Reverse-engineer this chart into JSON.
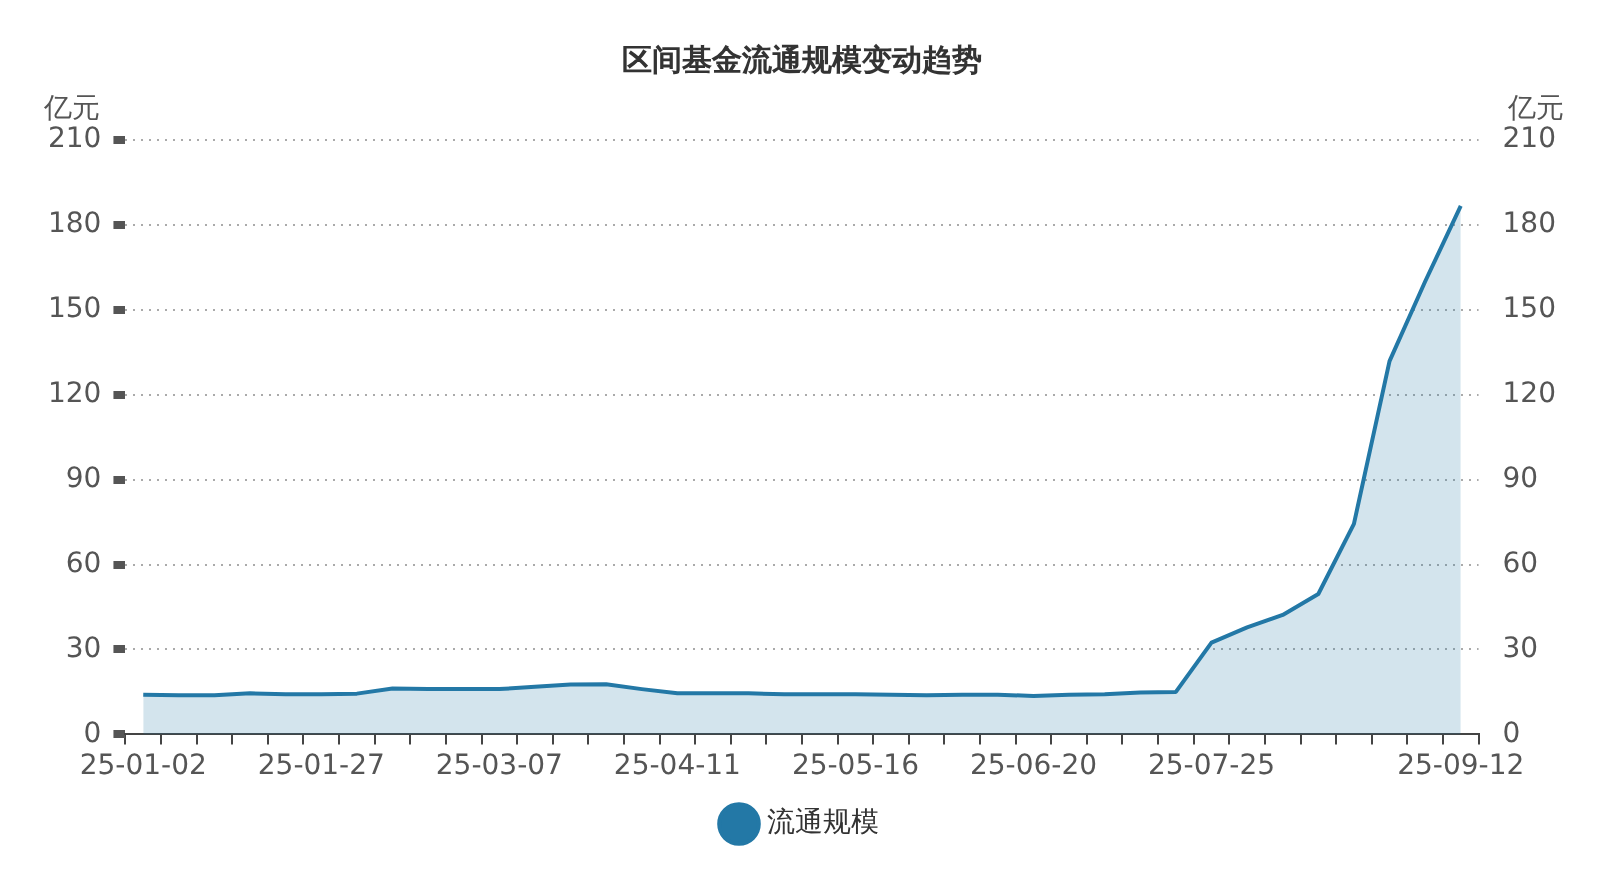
{
  "chart_data": {
    "type": "area",
    "title": "区间基金流通规模变动趋势",
    "ylabel": "亿元",
    "y2label": "亿元",
    "categories": [
      "25-01-02",
      null,
      null,
      null,
      null,
      "25-01-27",
      null,
      null,
      null,
      null,
      "25-03-07",
      null,
      null,
      null,
      null,
      "25-04-11",
      null,
      null,
      null,
      null,
      "25-05-16",
      null,
      null,
      null,
      null,
      "25-06-20",
      null,
      null,
      null,
      null,
      "25-07-25",
      null,
      null,
      null,
      null,
      null,
      null,
      "25-09-12"
    ],
    "series": [
      {
        "name": "流通规模",
        "color": "#2378a6",
        "values": [
          14,
          13.8,
          13.8,
          14.5,
          14.2,
          14.2,
          14.4,
          16.2,
          16,
          16,
          16,
          16.8,
          17.6,
          17.7,
          16,
          14.5,
          14.5,
          14.5,
          14.2,
          14.2,
          14.2,
          14,
          13.8,
          14,
          14,
          13.6,
          14,
          14.2,
          14.8,
          15,
          32.4,
          37.8,
          42.2,
          49.6,
          74.4,
          131.9,
          160,
          186.7
        ]
      }
    ],
    "ylim": [
      0,
      210
    ],
    "yticks": [
      0,
      30,
      60,
      90,
      120,
      150,
      180,
      210
    ],
    "y2lim": [
      0,
      210
    ],
    "y2ticks": [
      0,
      30,
      60,
      90,
      120,
      150,
      180,
      210
    ],
    "grid": "y",
    "legend": "bottom",
    "marker": "none",
    "line_style": "solid"
  }
}
